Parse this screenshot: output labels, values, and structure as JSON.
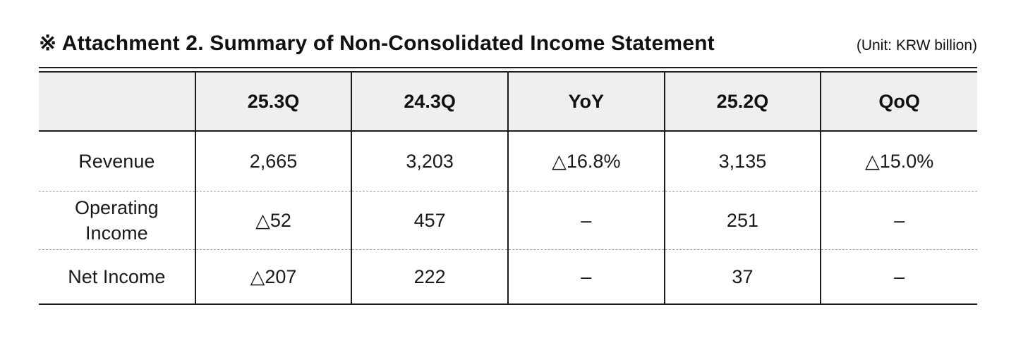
{
  "title": {
    "text": "※ Attachment 2. Summary of Non-Consolidated Income Statement",
    "unit": "(Unit: KRW billion)"
  },
  "table": {
    "headers": [
      "",
      "25.3Q",
      "24.3Q",
      "YoY",
      "25.2Q",
      "QoQ"
    ],
    "rows": [
      {
        "label": "Revenue",
        "values": [
          "2,665",
          "3,203",
          "△16.8%",
          "3,135",
          "△15.0%"
        ]
      },
      {
        "label": "Operating Income",
        "values": [
          "△52",
          "457",
          "–",
          "251",
          "–"
        ]
      },
      {
        "label": "Net Income",
        "values": [
          "△207",
          "222",
          "–",
          "37",
          "–"
        ]
      }
    ]
  },
  "colors": {
    "background": "#ffffff",
    "text": "#111111",
    "rule": "#1b1b1b",
    "dashed_divider": "#9c9c9c",
    "header_background": "#f0efef"
  }
}
